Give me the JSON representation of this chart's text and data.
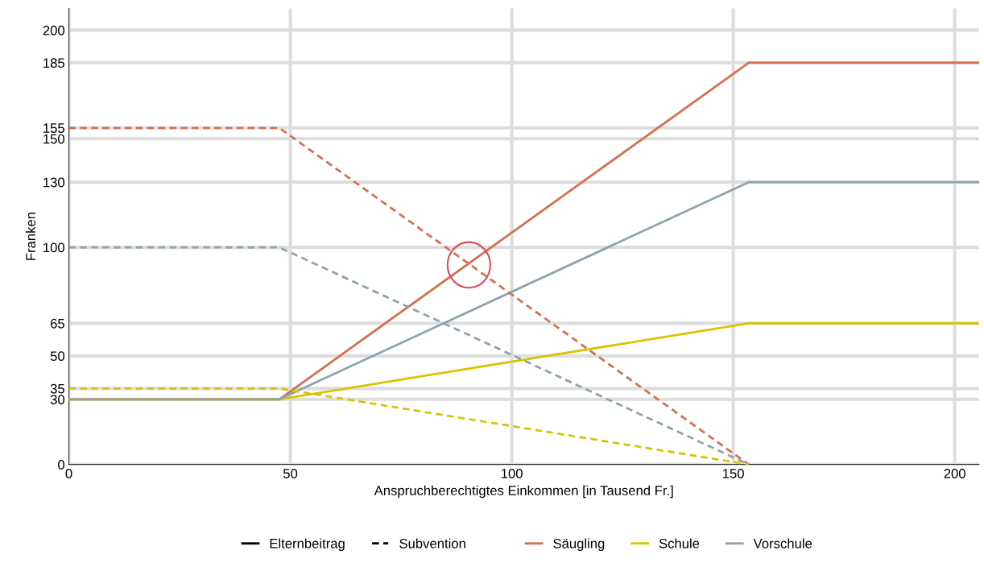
{
  "chart_data": {
    "type": "line",
    "xlabel": "Anspruchberechtigtes Einkommen [in Tausend Fr.]",
    "ylabel": "Franken",
    "xlim": [
      0,
      205.5
    ],
    "xticks": [
      0,
      50,
      100,
      150,
      200
    ],
    "ylim": [
      0,
      210
    ],
    "yticks": [
      0,
      30,
      35,
      50,
      65,
      100,
      130,
      150,
      155,
      185,
      200
    ],
    "grid": true,
    "legend": "bottom",
    "marker": "none",
    "annotations": [
      "Elternbeitrag",
      "Subvention"
    ],
    "series": [
      {
        "name": "Säugling",
        "color": "#d4704f",
        "line_style": "solid",
        "x": [
          0,
          47.5,
          153.5,
          205.5
        ],
        "values": [
          30,
          30,
          185,
          185
        ]
      },
      {
        "name": "Schule",
        "color": "#d9c400",
        "line_style": "solid",
        "x": [
          0,
          47.5,
          153.5,
          205.5
        ],
        "values": [
          30,
          30,
          65,
          65
        ]
      },
      {
        "name": "Vorschule",
        "color": "#8fa3ad",
        "line_style": "solid",
        "x": [
          0,
          47.5,
          153.5,
          205.5
        ],
        "values": [
          30,
          30,
          130,
          130
        ]
      },
      {
        "color": "#d4704f",
        "line_style": "dashed",
        "x": [
          0,
          47.5,
          153.5
        ],
        "values": [
          155,
          155,
          0
        ]
      },
      {
        "color": "#d9c400",
        "line_style": "dashed",
        "x": [
          0,
          47.5,
          153.5
        ],
        "values": [
          35,
          35,
          0
        ]
      },
      {
        "color": "#8fa3ad",
        "line_style": "dashed",
        "x": [
          0,
          47.5,
          153.5
        ],
        "values": [
          100,
          100,
          0
        ]
      }
    ]
  }
}
